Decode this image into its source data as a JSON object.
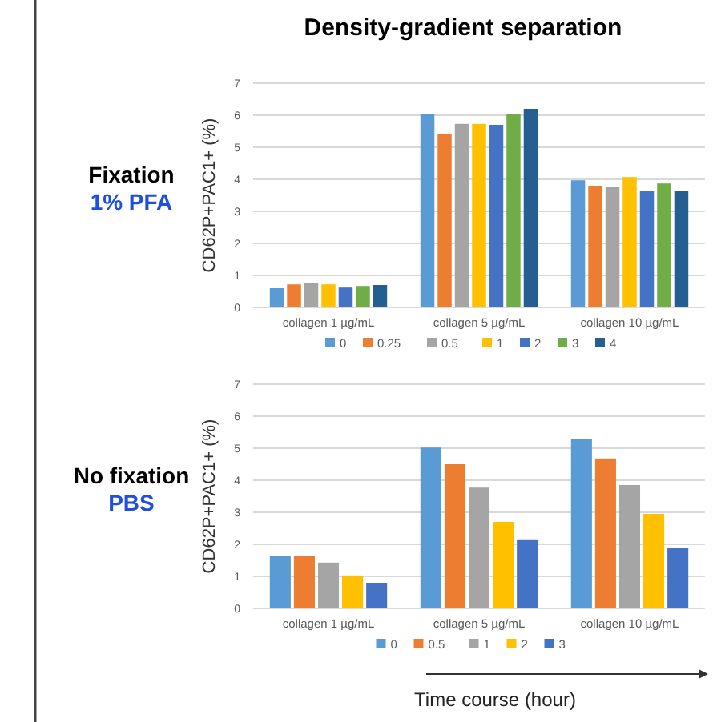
{
  "chart_data": [
    {
      "type": "bar",
      "title": "Density-gradient separation",
      "ylabel": "CD62P+PAC1+ (%)",
      "annotations": [
        "Fixation",
        "1% PFA"
      ],
      "categories": [
        "collagen 1 µg/mL",
        "collagen 5 µg/mL",
        "collagen 10 µg/mL"
      ],
      "ylim": [
        0,
        7
      ],
      "yticks": [
        0,
        1,
        2,
        3,
        4,
        5,
        6,
        7
      ],
      "grid": "y",
      "legend": "bottom",
      "series": [
        {
          "name": "0",
          "color": "#5b9bd5",
          "values": [
            0.6,
            6.05,
            3.97
          ]
        },
        {
          "name": "0.25",
          "color": "#ed7d31",
          "values": [
            0.72,
            5.42,
            3.8
          ]
        },
        {
          "name": "0.5",
          "color": "#a5a5a5",
          "values": [
            0.75,
            5.73,
            3.77
          ]
        },
        {
          "name": "1",
          "color": "#ffc000",
          "values": [
            0.72,
            5.73,
            4.07
          ]
        },
        {
          "name": "2",
          "color": "#4472c4",
          "values": [
            0.62,
            5.7,
            3.63
          ]
        },
        {
          "name": "3",
          "color": "#70ad47",
          "values": [
            0.67,
            6.05,
            3.87
          ]
        },
        {
          "name": "4",
          "color": "#255e91",
          "values": [
            0.7,
            6.2,
            3.65
          ]
        }
      ]
    },
    {
      "type": "bar",
      "ylabel": "CD62P+PAC1+ (%)",
      "xlabel": "Time course (hour)",
      "annotations": [
        "No fixation",
        "PBS"
      ],
      "categories": [
        "collagen 1 µg/mL",
        "collagen 5 µg/mL",
        "collagen 10 µg/mL"
      ],
      "ylim": [
        0,
        7
      ],
      "yticks": [
        0,
        1,
        2,
        3,
        4,
        5,
        6,
        7
      ],
      "grid": "y",
      "legend": "bottom",
      "series": [
        {
          "name": "0",
          "color": "#5b9bd5",
          "values": [
            1.63,
            5.02,
            5.28
          ]
        },
        {
          "name": "0.5",
          "color": "#ed7d31",
          "values": [
            1.65,
            4.5,
            4.68
          ]
        },
        {
          "name": "1",
          "color": "#a5a5a5",
          "values": [
            1.43,
            3.77,
            3.85
          ]
        },
        {
          "name": "2",
          "color": "#ffc000",
          "values": [
            1.03,
            2.7,
            2.95
          ]
        },
        {
          "name": "3",
          "color": "#4472c4",
          "values": [
            0.8,
            2.13,
            1.88
          ]
        }
      ]
    }
  ]
}
